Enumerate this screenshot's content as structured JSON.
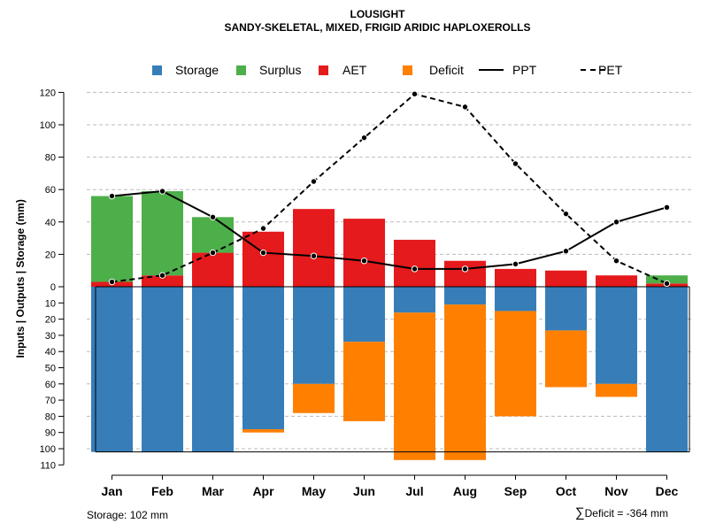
{
  "title": "LOUSIGHT",
  "subtitle": "SANDY-SKELETAL, MIXED, FRIGID ARIDIC HAPLOXEROLLS",
  "colors": {
    "storage": "#377EB8",
    "surplus": "#4DAF4A",
    "aet": "#E41A1C",
    "deficit": "#FF7F00",
    "grid": "#BBBBBB",
    "line": "#000000"
  },
  "footer": {
    "storage_label": "Storage: 102 mm",
    "deficit_symbol": "∑",
    "deficit_label": "Deficit = -364 mm"
  },
  "chart_data": {
    "type": "bar",
    "categories": [
      "Jan",
      "Feb",
      "Mar",
      "Apr",
      "May",
      "Jun",
      "Jul",
      "Aug",
      "Sep",
      "Oct",
      "Nov",
      "Dec"
    ],
    "ylabel": "Inputs | Outputs | Storage    (mm)",
    "upper_axis": {
      "ylim": [
        0,
        120
      ],
      "ticks": [
        "0",
        "20",
        "40",
        "60",
        "80",
        "100",
        "120"
      ]
    },
    "lower_axis": {
      "ylim": [
        0,
        110
      ],
      "ticks": [
        "10",
        "20",
        "30",
        "40",
        "50",
        "60",
        "70",
        "80",
        "90",
        "100",
        "110"
      ]
    },
    "legend": {
      "position": "top",
      "items": [
        {
          "label": "Storage",
          "kind": "box",
          "color": "#377EB8"
        },
        {
          "label": "Surplus",
          "kind": "box",
          "color": "#4DAF4A"
        },
        {
          "label": "AET",
          "kind": "box",
          "color": "#E41A1C"
        },
        {
          "label": "Deficit",
          "kind": "box",
          "color": "#FF7F00"
        },
        {
          "label": "PPT",
          "kind": "solid"
        },
        {
          "label": "PET",
          "kind": "dashed"
        }
      ]
    },
    "series": [
      {
        "name": "AET",
        "values": [
          3,
          7,
          21,
          34,
          48,
          42,
          29,
          16,
          11,
          10,
          7,
          2
        ]
      },
      {
        "name": "Surplus",
        "values": [
          53,
          52,
          22,
          0,
          0,
          0,
          0,
          0,
          0,
          0,
          0,
          5
        ]
      },
      {
        "name": "Storage",
        "values": [
          102,
          102,
          102,
          88,
          60,
          34,
          16,
          11,
          15,
          27,
          60,
          102
        ]
      },
      {
        "name": "Deficit",
        "values": [
          0,
          0,
          0,
          2,
          18,
          49,
          91,
          96,
          65,
          35,
          8,
          0
        ]
      },
      {
        "name": "PPT",
        "values": [
          56,
          59,
          43,
          21,
          19,
          16,
          11,
          11,
          14,
          22,
          40,
          49
        ]
      },
      {
        "name": "PET",
        "values": [
          3,
          7,
          21,
          36,
          65,
          92,
          119,
          111,
          76,
          45,
          16,
          2
        ]
      }
    ],
    "storage_capacity": 102
  }
}
